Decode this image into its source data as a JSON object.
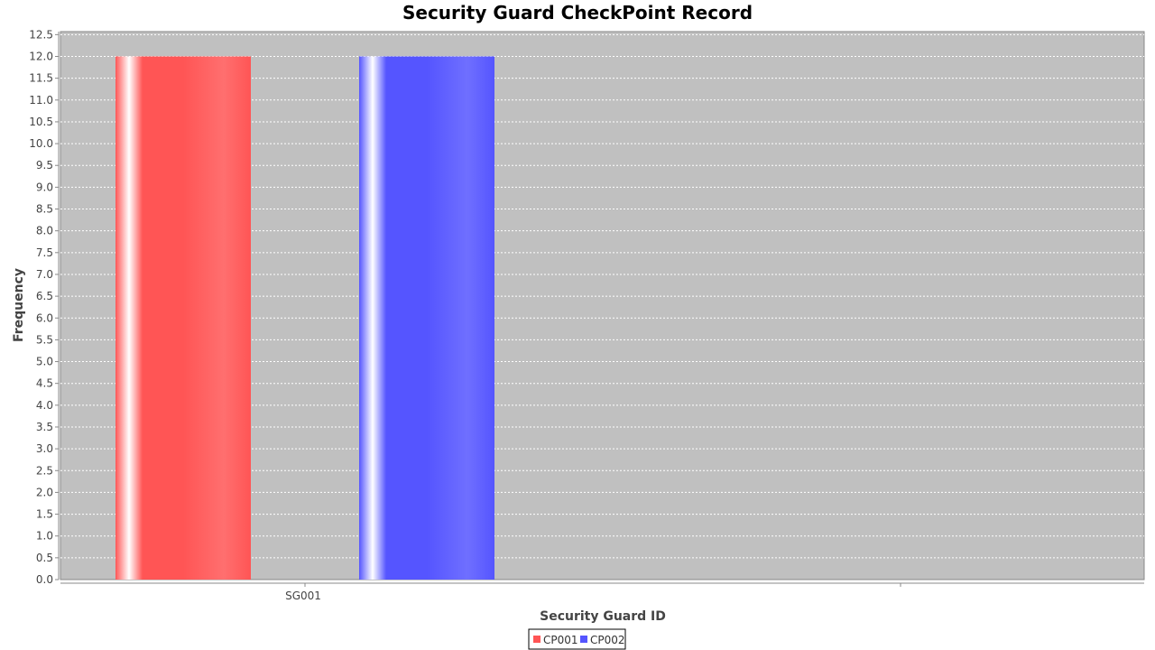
{
  "chart_data": {
    "type": "bar",
    "title": "Security Guard CheckPoint Record",
    "xlabel": "Security Guard ID",
    "ylabel": "Frequency",
    "categories": [
      "SG001"
    ],
    "series": [
      {
        "name": "CP001",
        "values": [
          12
        ],
        "color": "#ff5555"
      },
      {
        "name": "CP002",
        "values": [
          12
        ],
        "color": "#5555ff"
      }
    ],
    "ylim": [
      0,
      12.5
    ],
    "ytick_step": 0.5,
    "grid": true,
    "legend_position": "bottom-center",
    "plot_background": "#c0c0c0"
  }
}
